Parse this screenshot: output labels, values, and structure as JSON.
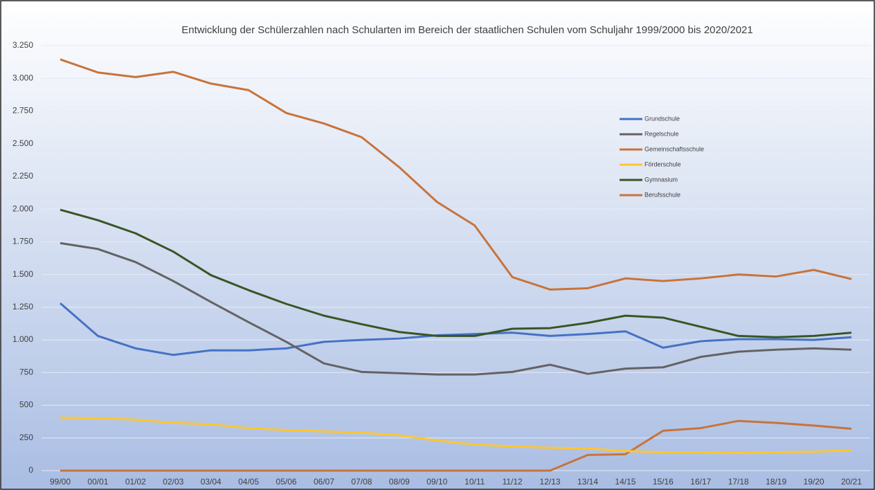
{
  "chart_data": {
    "type": "line",
    "title": "Entwicklung der Schülerzahlen nach Schularten im Bereich der staatlichen Schulen vom Schuljahr 1999/2000 bis 2020/2021",
    "categories": [
      "99/00",
      "00/01",
      "01/02",
      "02/03",
      "03/04",
      "04/05",
      "05/06",
      "06/07",
      "07/08",
      "08/09",
      "09/10",
      "10/11",
      "11/12",
      "12/13",
      "13/14",
      "14/15",
      "15/16",
      "16/17",
      "17/18",
      "18/19",
      "19/20",
      "20/21"
    ],
    "series": [
      {
        "name": "Grundschule",
        "color": "#4472c4",
        "values": [
          1280,
          1030,
          935,
          885,
          920,
          920,
          935,
          985,
          1000,
          1010,
          1035,
          1045,
          1055,
          1030,
          1045,
          1065,
          940,
          990,
          1005,
          1005,
          1000,
          1020
        ]
      },
      {
        "name": "Regelschule",
        "color": "#636363",
        "values": [
          1740,
          1695,
          1595,
          1450,
          1290,
          1135,
          985,
          820,
          755,
          745,
          735,
          735,
          755,
          810,
          740,
          780,
          790,
          870,
          910,
          925,
          935,
          925
        ]
      },
      {
        "name": "Gemeinschaftsschule",
        "color": "#c8733a",
        "values": [
          0,
          0,
          0,
          0,
          0,
          0,
          0,
          0,
          0,
          0,
          0,
          0,
          0,
          0,
          120,
          125,
          305,
          325,
          380,
          365,
          345,
          320
        ]
      },
      {
        "name": "Förderschule",
        "color": "#ffc62e",
        "values": [
          405,
          400,
          390,
          365,
          355,
          325,
          310,
          300,
          290,
          270,
          230,
          200,
          185,
          175,
          170,
          150,
          140,
          140,
          135,
          140,
          145,
          155
        ]
      },
      {
        "name": "Gymnasium",
        "color": "#375623",
        "values": [
          1995,
          1915,
          1815,
          1675,
          1495,
          1380,
          1275,
          1185,
          1120,
          1060,
          1030,
          1030,
          1085,
          1090,
          1130,
          1185,
          1170,
          1100,
          1030,
          1020,
          1030,
          1055
        ]
      },
      {
        "name": "Berufsschule",
        "color": "#c8733a",
        "values": [
          3145,
          3045,
          3010,
          3050,
          2960,
          2910,
          2735,
          2655,
          2550,
          2320,
          2055,
          1875,
          1480,
          1385,
          1395,
          1470,
          1450,
          1470,
          1500,
          1485,
          1535,
          1465
        ]
      }
    ],
    "ylim": [
      0,
      3250
    ],
    "yticks": [
      0,
      250,
      500,
      750,
      {
        "value": 1000,
        "label": "1.000"
      },
      {
        "value": 1250,
        "label": "1.250"
      },
      {
        "value": 1500,
        "label": "1.500"
      },
      {
        "value": 1750,
        "label": "1.750"
      },
      {
        "value": 2000,
        "label": "2.000"
      },
      {
        "value": 2250,
        "label": "2.250"
      },
      {
        "value": 2500,
        "label": "2.500"
      },
      {
        "value": 2750,
        "label": "2.750"
      },
      {
        "value": 3000,
        "label": "3.000"
      },
      {
        "value": 3250,
        "label": "3.250"
      }
    ],
    "grid": true
  }
}
